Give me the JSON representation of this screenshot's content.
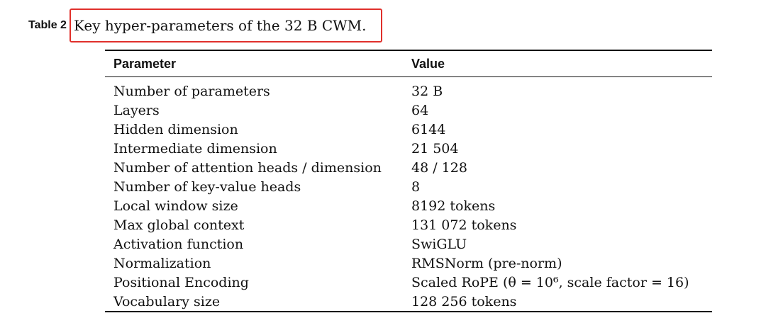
{
  "caption": {
    "label": "Table 2",
    "text": "Key hyper-parameters of the 32 B CWM."
  },
  "table": {
    "headers": [
      "Parameter",
      "Value"
    ],
    "rows": [
      [
        "Number of parameters",
        "32 B"
      ],
      [
        "Layers",
        "64"
      ],
      [
        "Hidden dimension",
        "6144"
      ],
      [
        "Intermediate dimension",
        "21 504"
      ],
      [
        "Number of attention heads / dimension",
        "48 / 128"
      ],
      [
        "Number of key-value heads",
        "8"
      ],
      [
        "Local window size",
        "8192 tokens"
      ],
      [
        "Max global context",
        "131 072 tokens"
      ],
      [
        "Activation function",
        "SwiGLU"
      ],
      [
        "Normalization",
        "RMSNorm (pre-norm)"
      ],
      [
        "Positional Encoding",
        "Scaled RoPE (θ = 10⁶, scale factor = 16)"
      ],
      [
        "Vocabulary size",
        "128 256 tokens"
      ]
    ]
  },
  "colors": {
    "highlight_box": "#e0302b",
    "text": "#111111"
  }
}
